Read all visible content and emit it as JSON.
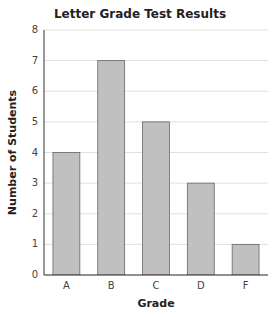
{
  "chart_data": {
    "type": "bar",
    "title": "Letter Grade Test Results",
    "categories": [
      "A",
      "B",
      "C",
      "D",
      "F"
    ],
    "values": [
      4,
      7,
      5,
      3,
      1
    ],
    "color": "#c0c0c0",
    "xlabel": "Grade",
    "ylabel": "Number of Students",
    "ylim": [
      0,
      8
    ],
    "yticks": [
      0,
      1,
      2,
      3,
      4,
      5,
      6,
      7,
      8
    ],
    "grid": true
  }
}
